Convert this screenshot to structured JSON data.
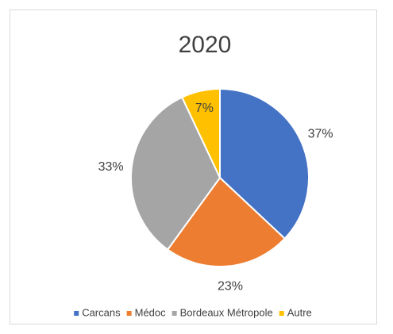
{
  "chart_data": {
    "type": "pie",
    "title": "2020",
    "categories": [
      "Carcans",
      "Médoc",
      "Bordeaux Métropole",
      "Autre"
    ],
    "values": [
      37,
      23,
      33,
      7
    ],
    "value_labels": [
      "37%",
      "23%",
      "33%",
      "7%"
    ],
    "colors": [
      "#4472c4",
      "#ed7d31",
      "#a5a5a5",
      "#ffc000"
    ],
    "legend": "bottom"
  }
}
